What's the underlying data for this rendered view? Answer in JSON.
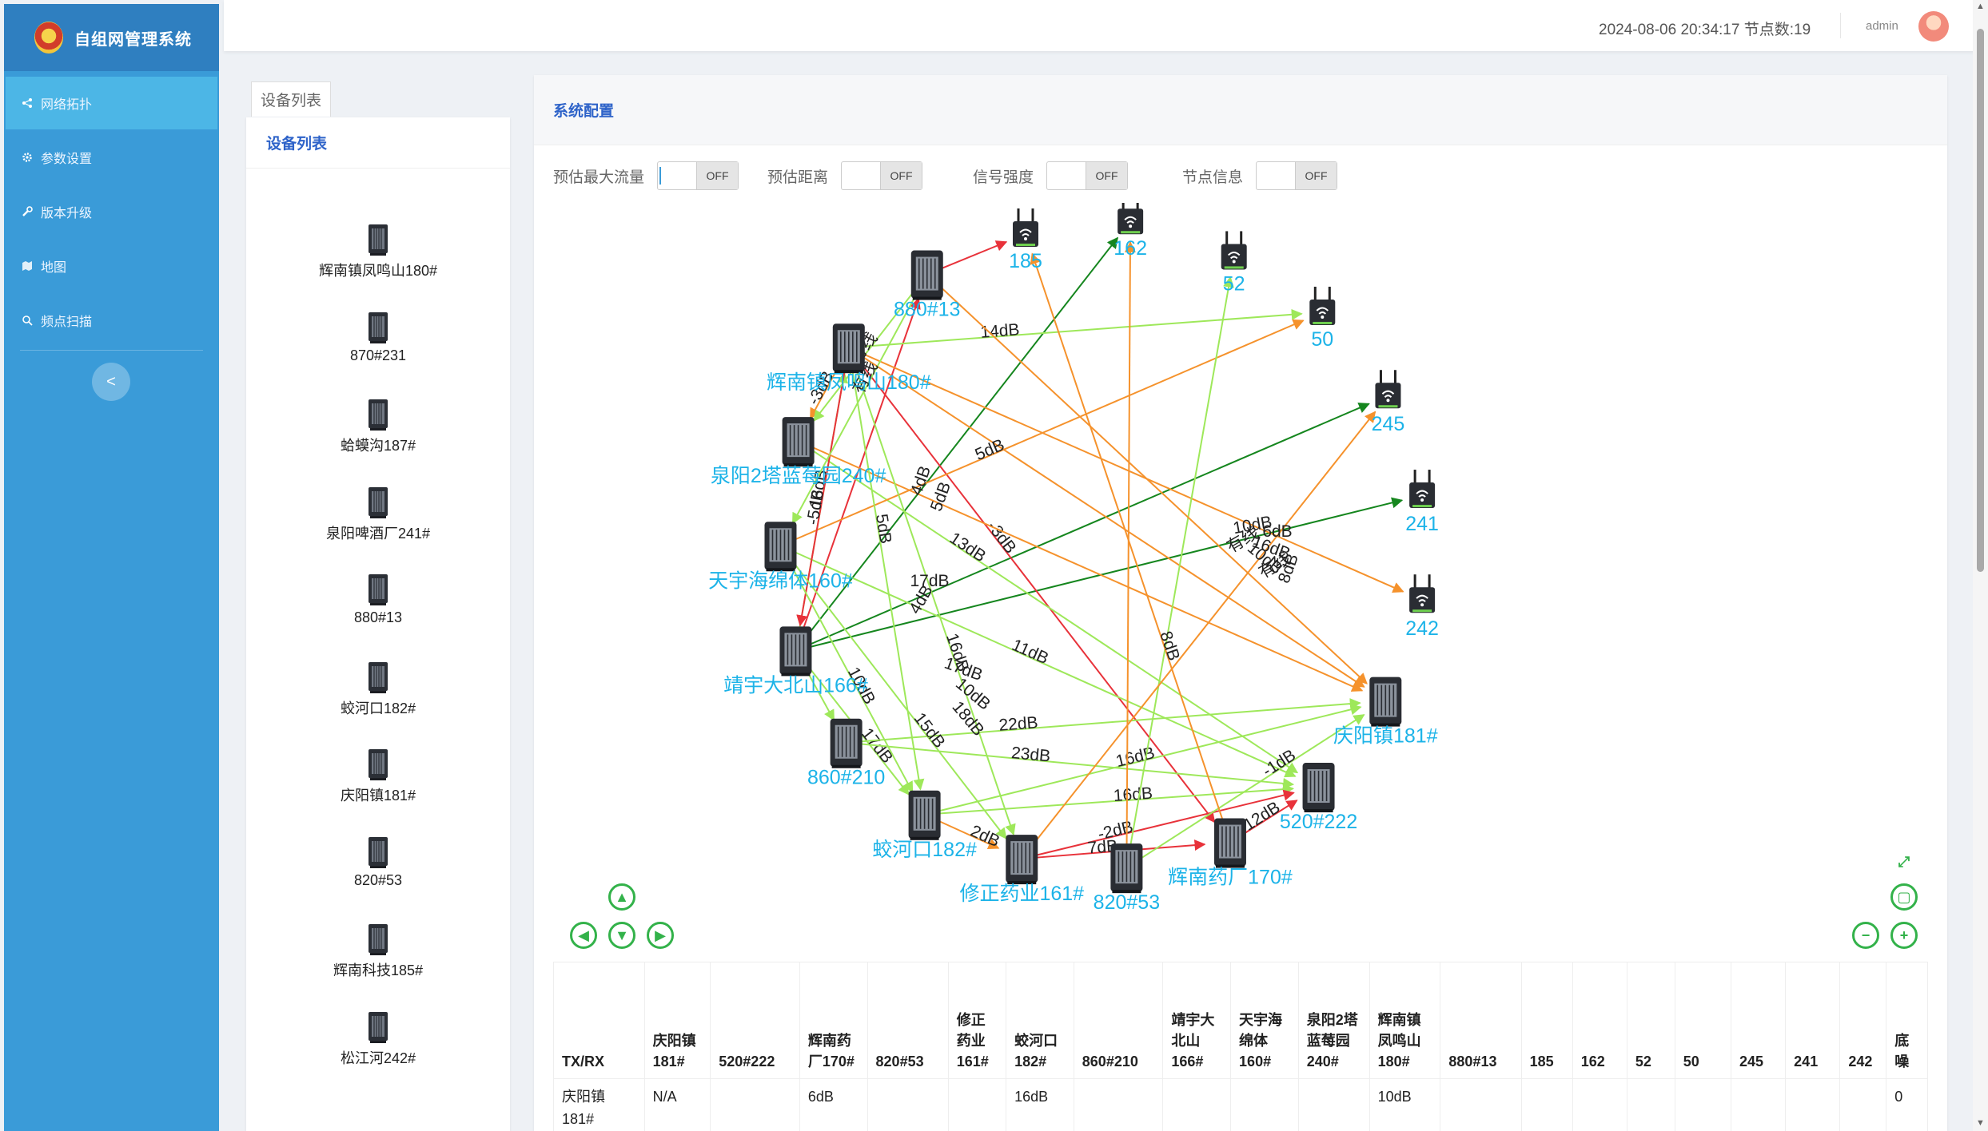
{
  "app": {
    "title": "自组网管理系统"
  },
  "menu": [
    {
      "label": "网络拓扑",
      "icon": "share-icon",
      "active": true
    },
    {
      "label": "参数设置",
      "icon": "gear-icon",
      "active": false
    },
    {
      "label": "版本升级",
      "icon": "wrench-icon",
      "active": false
    },
    {
      "label": "地图",
      "icon": "map-icon",
      "active": false
    },
    {
      "label": "频点扫描",
      "icon": "search-icon",
      "active": false
    }
  ],
  "collapse_label": "<",
  "header": {
    "datetime": "2024-08-06 20:34:17",
    "node_count_label": "节点数:19",
    "user": "admin"
  },
  "device_panel": {
    "tab": "设备列表",
    "title": "设备列表",
    "devices": [
      "辉南镇凤鸣山180#",
      "870#231",
      "蛤蟆沟187#",
      "泉阳啤酒厂241#",
      "880#13",
      "蛟河口182#",
      "庆阳镇181#",
      "820#53",
      "辉南科技185#",
      "松江河242#"
    ]
  },
  "topology": {
    "title": "系统配置",
    "toggles": [
      {
        "label": "预估最大流量",
        "state": "OFF"
      },
      {
        "label": "预估距离",
        "state": "OFF"
      },
      {
        "label": "信号强度",
        "state": "OFF"
      },
      {
        "label": "节点信息",
        "state": "OFF"
      }
    ],
    "nodes": [
      {
        "id": "185",
        "label": "185",
        "type": "router"
      },
      {
        "id": "162",
        "label": "162",
        "type": "router"
      },
      {
        "id": "52",
        "label": "52",
        "type": "router"
      },
      {
        "id": "50",
        "label": "50",
        "type": "router"
      },
      {
        "id": "245",
        "label": "245",
        "type": "router"
      },
      {
        "id": "241",
        "label": "241",
        "type": "router"
      },
      {
        "id": "242",
        "label": "242",
        "type": "router"
      },
      {
        "id": "880#13",
        "label": "880#13",
        "type": "station"
      },
      {
        "id": "180",
        "label": "辉南镇凤鸣山180#",
        "type": "station"
      },
      {
        "id": "240",
        "label": "泉阳2塔蓝莓园240#",
        "type": "station"
      },
      {
        "id": "160",
        "label": "天宇海绵体160#",
        "type": "station"
      },
      {
        "id": "166",
        "label": "靖宇大北山166#",
        "type": "station"
      },
      {
        "id": "860#210",
        "label": "860#210",
        "type": "station"
      },
      {
        "id": "182",
        "label": "蛟河口182#",
        "type": "station"
      },
      {
        "id": "161",
        "label": "修正药业161#",
        "type": "station"
      },
      {
        "id": "820#53",
        "label": "820#53",
        "type": "station"
      },
      {
        "id": "170",
        "label": "辉南药厂170#",
        "type": "station"
      },
      {
        "id": "520#222",
        "label": "520#222",
        "type": "station"
      },
      {
        "id": "181",
        "label": "庆阳镇181#",
        "type": "station"
      }
    ],
    "edges": [
      {
        "from": "880#13",
        "to": "185",
        "color": "#e8323a",
        "label": ""
      },
      {
        "from": "166",
        "to": "162",
        "color": "#15861e",
        "label": ""
      },
      {
        "from": "166",
        "to": "245",
        "color": "#15861e",
        "label": ""
      },
      {
        "from": "166",
        "to": "241",
        "color": "#15861e",
        "label": ""
      },
      {
        "from": "166",
        "to": "880#13",
        "color": "#e8323a",
        "label": ""
      },
      {
        "from": "180",
        "to": "50",
        "color": "#9ee85a",
        "label": "14dB"
      },
      {
        "from": "180",
        "to": "170",
        "color": "#e8323a",
        "label": "-3dB"
      },
      {
        "from": "180",
        "to": "242",
        "color": "#f5922c",
        "label": ""
      },
      {
        "from": "180",
        "to": "181",
        "color": "#f5922c",
        "label": ""
      },
      {
        "from": "240",
        "to": "181",
        "color": "#f5922c",
        "label": ""
      },
      {
        "from": "240",
        "to": "520#222",
        "color": "#9ee85a",
        "label": "13dB"
      },
      {
        "from": "160",
        "to": "50",
        "color": "#f5922c",
        "label": "5dB"
      },
      {
        "from": "160",
        "to": "520#222",
        "color": "#9ee85a",
        "label": "11dB"
      },
      {
        "from": "166",
        "to": "180",
        "color": "#9ee85a",
        "label": "16dB"
      },
      {
        "from": "166",
        "to": "182",
        "color": "#9ee85a",
        "label": "17dB"
      },
      {
        "from": "166",
        "to": "860#210",
        "color": "#9ee85a",
        "label": ""
      },
      {
        "from": "180",
        "to": "182",
        "color": "#9ee85a",
        "label": "5dB"
      },
      {
        "from": "180",
        "to": "240",
        "color": "#f5922c",
        "label": "-3dB"
      },
      {
        "from": "180",
        "to": "166",
        "color": "#e8323a",
        "label": "-5dB"
      },
      {
        "from": "180",
        "to": "161",
        "color": "#9ee85a",
        "label": "16dB"
      },
      {
        "from": "860#210",
        "to": "181",
        "color": "#9ee85a",
        "label": "22dB"
      },
      {
        "from": "860#210",
        "to": "520#222",
        "color": "#9ee85a",
        "label": "23dB"
      },
      {
        "from": "182",
        "to": "181",
        "color": "#9ee85a",
        "label": "16dB"
      },
      {
        "from": "182",
        "to": "520#222",
        "color": "#9ee85a",
        "label": "16dB"
      },
      {
        "from": "182",
        "to": "161",
        "color": "#f5922c",
        "label": "2dB"
      },
      {
        "from": "161",
        "to": "520#222",
        "color": "#e8323a",
        "label": "-2dB"
      },
      {
        "from": "161",
        "to": "170",
        "color": "#e8323a",
        "label": "7dB"
      },
      {
        "from": "820#53",
        "to": "52",
        "color": "#9ee85a",
        "label": ""
      },
      {
        "from": "820#53",
        "to": "162",
        "color": "#f5922c",
        "label": ""
      },
      {
        "from": "820#53",
        "to": "181",
        "color": "#9ee85a",
        "label": "-1dB"
      },
      {
        "from": "170",
        "to": "185",
        "color": "#f5922c",
        "label": "8dB"
      },
      {
        "from": "170",
        "to": "520#222",
        "color": "#e8323a",
        "label": "12dB"
      },
      {
        "from": "161",
        "to": "245",
        "color": "#f5922c",
        "label": ""
      },
      {
        "from": "160",
        "to": "182",
        "color": "#9ee85a",
        "label": "10dB"
      },
      {
        "from": "160",
        "to": "161",
        "color": "#9ee85a",
        "label": "15dB"
      },
      {
        "from": "880#13",
        "to": "181",
        "color": "#f5922c",
        "label": ""
      },
      {
        "from": "880#13",
        "to": "160",
        "color": "#9ee85a",
        "label": "有线"
      },
      {
        "from": "880#13",
        "to": "240",
        "color": "#9ee85a",
        "label": "有线"
      }
    ],
    "float_labels": [
      "有线",
      "有线",
      "10dB",
      "10dB",
      "6dB",
      "16dB",
      "8dB",
      "4dB",
      "5dB",
      "17dB",
      "4dB",
      "17dB",
      "10dB",
      "18dB"
    ],
    "nav": {
      "up": "▲",
      "down": "▼",
      "left": "◀",
      "right": "▶",
      "zoom_in": "+",
      "zoom_out": "−"
    }
  },
  "matrix": {
    "headers": [
      "TX/RX",
      "庆阳镇181#",
      "520#222",
      "辉南药厂170#",
      "820#53",
      "修正药业161#",
      "蛟河口182#",
      "860#210",
      "靖宇大北山166#",
      "天宇海绵体160#",
      "泉阳2塔蓝莓园240#",
      "辉南镇凤鸣山180#",
      "880#13",
      "185",
      "162",
      "52",
      "50",
      "245",
      "241",
      "242",
      "底噪"
    ],
    "rows": [
      [
        "庆阳镇181#",
        "N/A",
        "",
        "6dB",
        "",
        "",
        "16dB",
        "",
        "",
        "",
        "",
        "10dB",
        "",
        "",
        "",
        "",
        "",
        "",
        "",
        "",
        "0"
      ]
    ]
  }
}
